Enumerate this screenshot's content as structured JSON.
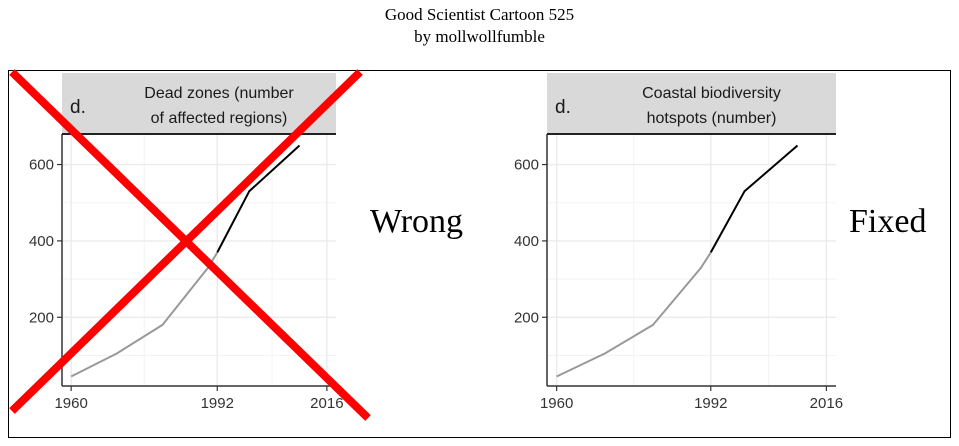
{
  "header": {
    "title": "Good Scientist Cartoon 525",
    "byline": "by mollwollfumble"
  },
  "verdicts": {
    "wrong": "Wrong",
    "fixed": "Fixed"
  },
  "colors": {
    "cross": "#ff0000",
    "early_line": "#999999",
    "late_line": "#000000",
    "strip_bg": "#d9d9d9",
    "grid": "#ebebeb"
  },
  "chart_data": [
    {
      "type": "line",
      "panel_letter": "d.",
      "title_lines": [
        "Dead zones (number",
        "of affected regions)"
      ],
      "x_ticks": [
        1960,
        1992,
        2016
      ],
      "y_ticks": [
        200,
        400,
        600
      ],
      "xlim": [
        1958,
        2018
      ],
      "ylim": [
        20,
        680
      ],
      "series": [
        {
          "name": "early",
          "color": "#999999",
          "x": [
            1960,
            1970,
            1980,
            1990,
            1992
          ],
          "y": [
            45,
            105,
            180,
            330,
            370
          ]
        },
        {
          "name": "late",
          "color": "#000000",
          "x": [
            1992,
            1999,
            2010
          ],
          "y": [
            370,
            530,
            650
          ]
        }
      ],
      "crossed_out": true
    },
    {
      "type": "line",
      "panel_letter": "d.",
      "title_lines": [
        "Coastal biodiversity",
        "hotspots (number)"
      ],
      "x_ticks": [
        1960,
        1992,
        2016
      ],
      "y_ticks": [
        200,
        400,
        600
      ],
      "xlim": [
        1958,
        2018
      ],
      "ylim": [
        20,
        680
      ],
      "series": [
        {
          "name": "early",
          "color": "#999999",
          "x": [
            1960,
            1970,
            1980,
            1990,
            1992
          ],
          "y": [
            45,
            105,
            180,
            330,
            370
          ]
        },
        {
          "name": "late",
          "color": "#000000",
          "x": [
            1992,
            1999,
            2010
          ],
          "y": [
            370,
            530,
            650
          ]
        }
      ],
      "crossed_out": false
    }
  ]
}
